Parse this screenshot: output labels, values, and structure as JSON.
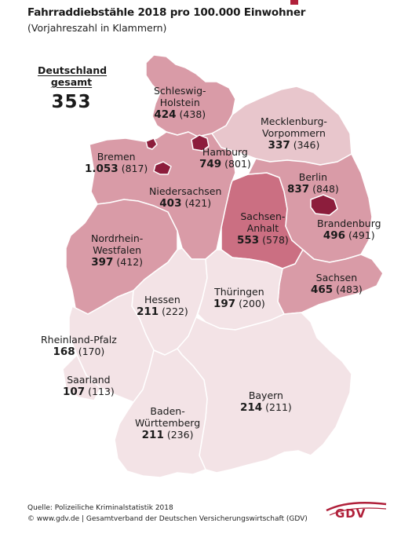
{
  "header": {
    "title": "Fahrraddiebstähle 2018 pro 100.000 Einwohner",
    "subtitle": "(Vorjahreszahl in Klammern)"
  },
  "total": {
    "label_line1": "Deutschland",
    "label_line2": "gesamt",
    "value": "353"
  },
  "states": {
    "schleswig_holstein": {
      "name_line1": "Schleswig-",
      "name_line2": "Holstein",
      "value": "424",
      "previous": "(438)"
    },
    "mecklenburg_vorpommern": {
      "name_line1": "Mecklenburg-",
      "name_line2": "Vorpommern",
      "value": "337",
      "previous": "(346)"
    },
    "hamburg": {
      "name": "Hamburg",
      "value": "749",
      "previous": "(801)"
    },
    "bremen": {
      "name": "Bremen",
      "value": "1.053",
      "previous": "(817)"
    },
    "berlin": {
      "name": "Berlin",
      "value": "837",
      "previous": "(848)"
    },
    "niedersachsen": {
      "name": "Niedersachsen",
      "value": "403",
      "previous": "(421)"
    },
    "sachsen_anhalt": {
      "name_line1": "Sachsen-",
      "name_line2": "Anhalt",
      "value": "553",
      "previous": "(578)"
    },
    "brandenburg": {
      "name": "Brandenburg",
      "value": "496",
      "previous": "(491)"
    },
    "nordrhein_westfalen": {
      "name_line1": "Nordrhein-",
      "name_line2": "Westfalen",
      "value": "397",
      "previous": "(412)"
    },
    "sachsen": {
      "name": "Sachsen",
      "value": "465",
      "previous": "(483)"
    },
    "hessen": {
      "name": "Hessen",
      "value": "211",
      "previous": "(222)"
    },
    "thueringen": {
      "name": "Thüringen",
      "value": "197",
      "previous": "(200)"
    },
    "rheinland_pfalz": {
      "name": "Rheinland-Pfalz",
      "value": "168",
      "previous": "(170)"
    },
    "saarland": {
      "name": "Saarland",
      "value": "107",
      "previous": "(113)"
    },
    "bayern": {
      "name": "Bayern",
      "value": "214",
      "previous": "(211)"
    },
    "baden_wuerttemberg": {
      "name_line1": "Baden-",
      "name_line2": "Württemberg",
      "value": "211",
      "previous": "(236)"
    }
  },
  "colors": {
    "accent": "#b0203a",
    "shade_lightest": "#f3e3e6",
    "shade_light": "#e8c6cc",
    "shade_medium": "#d99ba7",
    "shade_dark": "#cb6f82",
    "shade_darkest": "#8c1d3c",
    "border": "#ffffff"
  },
  "footer": {
    "source": "Quelle: Polizeiliche Kriminalstatistik 2018",
    "copyright": "© www.gdv.de | Gesamtverband der Deutschen Versicherungswirtschaft (GDV)"
  },
  "logo": {
    "text": "GDV"
  }
}
